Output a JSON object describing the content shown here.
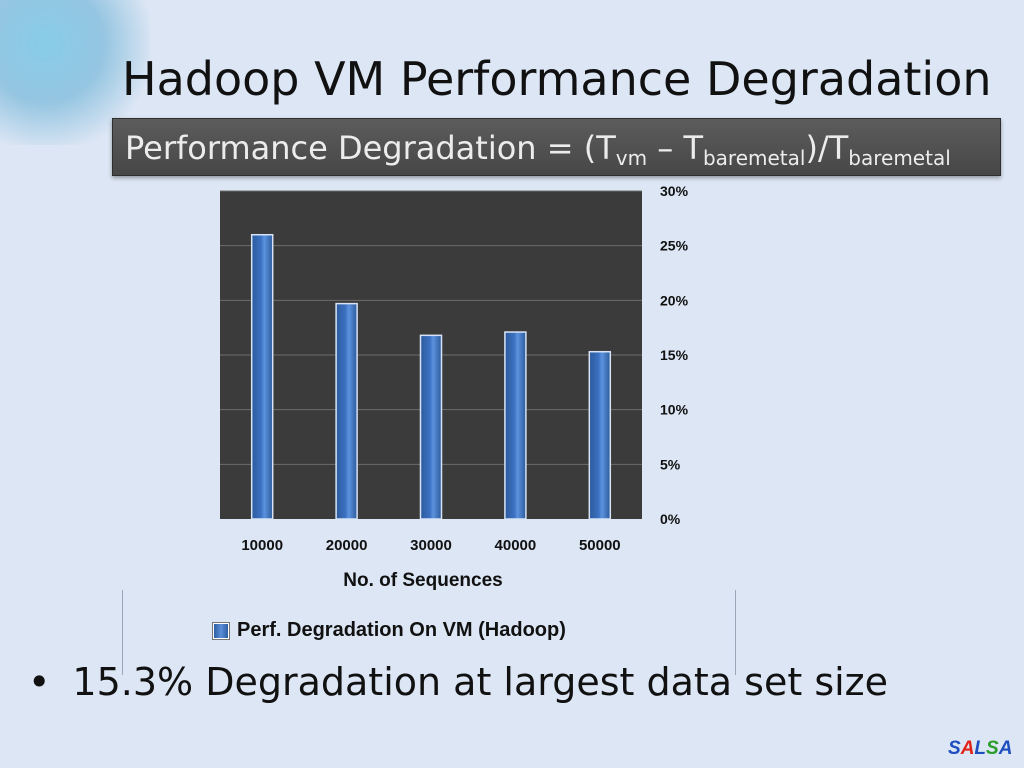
{
  "slide": {
    "title": "Hadoop VM Performance Degradation",
    "formula": {
      "prefix": "Performance Degradation = (T",
      "sub1": "vm",
      "mid": " – T",
      "sub2": "baremetal",
      "mid2": ")/T",
      "sub3": "baremetal"
    },
    "bullet": "15.3% Degradation at largest data set size",
    "logo": "SALSA",
    "logo_colors": [
      "#1f4fbf",
      "#e2231a",
      "#1f4fbf",
      "#2a9d2a",
      "#1f4fbf"
    ]
  },
  "chart_data": {
    "type": "bar",
    "categories": [
      "10000",
      "20000",
      "30000",
      "40000",
      "50000"
    ],
    "series": [
      {
        "name": "Perf. Degradation On VM (Hadoop)",
        "values": [
          26.0,
          19.7,
          16.8,
          17.1,
          15.3
        ]
      }
    ],
    "xlabel": "No. of Sequences",
    "ylabel": "",
    "ylim": [
      0,
      30
    ],
    "yticks": [
      0,
      5,
      10,
      15,
      20,
      25,
      30
    ],
    "ytick_labels": [
      "0%",
      "5%",
      "10%",
      "15%",
      "20%",
      "25%",
      "30%"
    ],
    "y_axis_side": "right",
    "grid": true,
    "plot_background": "#3b3b3b",
    "bar_color": "#3c72c2",
    "legend_position": "bottom"
  }
}
